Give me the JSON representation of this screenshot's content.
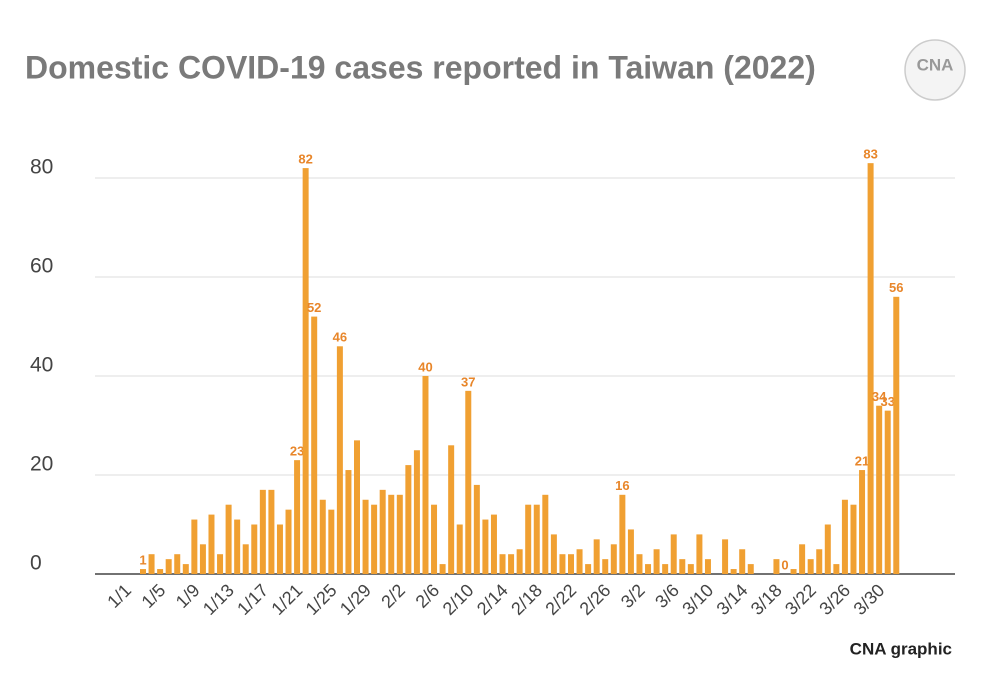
{
  "chart_data": {
    "type": "bar",
    "title": "Domestic COVID-19 cases reported in Taiwan (2022)",
    "source": "CNA graphic",
    "logo_text": "CNA",
    "categories": [
      "1/1",
      null,
      null,
      null,
      "1/5",
      null,
      null,
      null,
      "1/9",
      null,
      null,
      null,
      "1/13",
      null,
      null,
      null,
      "1/17",
      null,
      null,
      null,
      "1/21",
      null,
      null,
      null,
      "1/25",
      null,
      null,
      null,
      "1/29",
      null,
      null,
      null,
      "2/2",
      null,
      null,
      null,
      "2/6",
      null,
      null,
      null,
      "2/10",
      null,
      null,
      null,
      "2/14",
      null,
      null,
      null,
      "2/18",
      null,
      null,
      null,
      "2/22",
      null,
      null,
      null,
      "2/26",
      null,
      null,
      null,
      "3/2",
      null,
      null,
      null,
      "3/6",
      null,
      null,
      null,
      "3/10",
      null,
      null,
      null,
      "3/14",
      null,
      null,
      null,
      "3/18",
      null,
      null,
      null,
      "3/22",
      null,
      null,
      null,
      "3/26",
      null,
      null,
      null,
      "3/30"
    ],
    "values": [
      1,
      4,
      1,
      3,
      4,
      2,
      11,
      6,
      12,
      4,
      14,
      11,
      6,
      10,
      17,
      17,
      10,
      13,
      23,
      82,
      52,
      15,
      13,
      46,
      21,
      27,
      15,
      14,
      17,
      16,
      16,
      22,
      25,
      40,
      14,
      2,
      26,
      10,
      37,
      18,
      11,
      12,
      4,
      4,
      5,
      14,
      14,
      16,
      8,
      4,
      4,
      5,
      2,
      7,
      3,
      6,
      16,
      9,
      4,
      2,
      5,
      2,
      8,
      3,
      2,
      8,
      3,
      0,
      7,
      1,
      5,
      2,
      0,
      0,
      3,
      0,
      1,
      6,
      3,
      5,
      10,
      2,
      15,
      14,
      21,
      83,
      34,
      33,
      56
    ],
    "value_labels": [
      "1",
      null,
      null,
      null,
      null,
      null,
      null,
      null,
      null,
      null,
      null,
      null,
      null,
      null,
      null,
      null,
      null,
      null,
      "23",
      "82",
      "52",
      null,
      null,
      "46",
      null,
      null,
      null,
      null,
      null,
      null,
      null,
      null,
      null,
      "40",
      null,
      null,
      null,
      null,
      "37",
      null,
      null,
      null,
      null,
      null,
      null,
      null,
      null,
      null,
      null,
      null,
      null,
      null,
      null,
      null,
      null,
      null,
      "16",
      null,
      null,
      null,
      null,
      null,
      null,
      null,
      null,
      null,
      null,
      null,
      null,
      null,
      null,
      null,
      null,
      null,
      null,
      "0",
      null,
      null,
      null,
      null,
      null,
      null,
      null,
      null,
      "21",
      "83",
      "34",
      "33",
      "56"
    ],
    "color": "#f0a032",
    "label_color": "#e8862a",
    "ylim": [
      0,
      80
    ],
    "yticks": [
      0,
      20,
      40,
      60,
      80
    ],
    "grid": true
  }
}
